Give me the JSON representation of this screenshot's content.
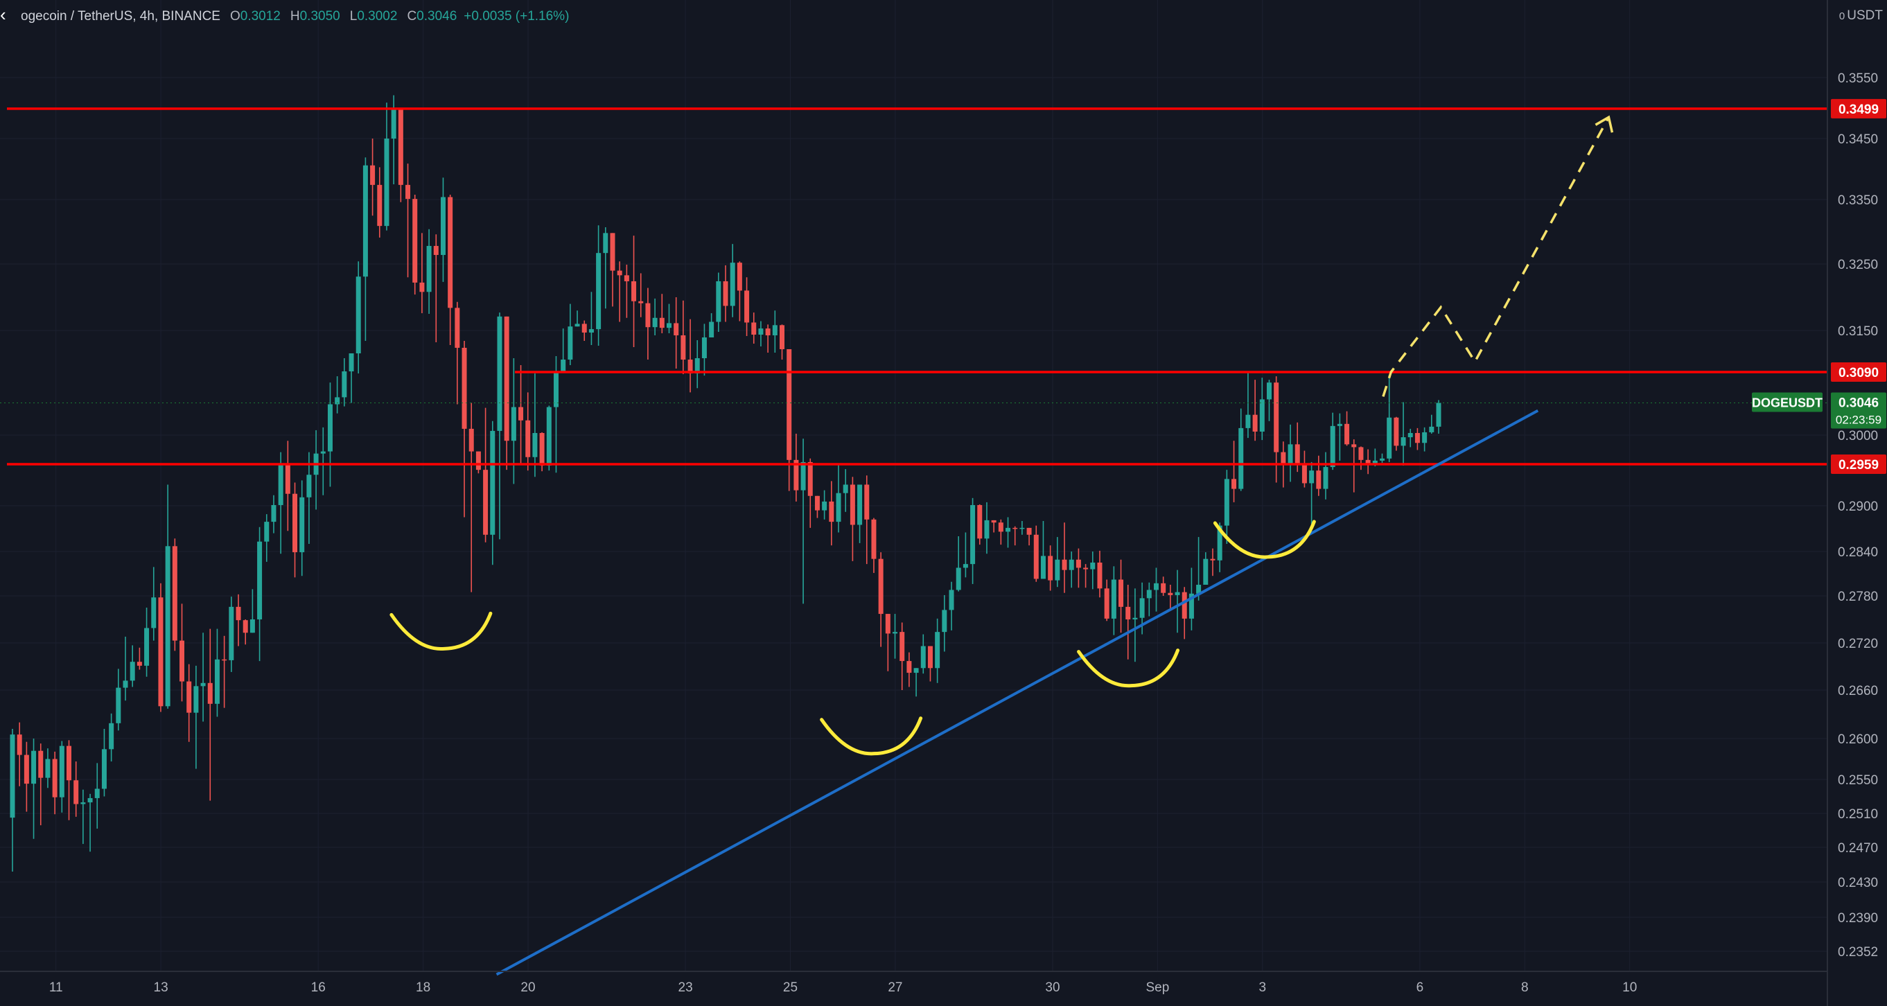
{
  "header": {
    "symbol_text": "ogecoin / TetherUS, 4h, BINANCE",
    "open_label": "O",
    "open_value": "0.3012",
    "high_label": "H",
    "high_value": "0.3050",
    "low_label": "L",
    "low_value": "0.3002",
    "close_label": "C",
    "close_value": "0.3046",
    "change_text": "+0.0035 (+1.16%)"
  },
  "axis": {
    "unit": "USDT"
  },
  "colors": {
    "background": "#131722",
    "up": "#26a69a",
    "down": "#ef5350",
    "level_line": "#ff0000",
    "trendline": "#1e6ec8",
    "annotation": "#ffeb3b",
    "ticker_tag": "#1b7b34"
  },
  "chart_data": {
    "type": "candlestick",
    "symbol": "DOGEUSDT",
    "interval": "4h",
    "exchange": "BINANCE",
    "x_tick_labels": [
      "11",
      "13",
      "16",
      "18",
      "20",
      "23",
      "25",
      "27",
      "30",
      "Sep",
      "3",
      "6",
      "8",
      "10"
    ],
    "y_tick_labels": [
      "0.3550",
      "0.3450",
      "0.3350",
      "0.3250",
      "0.3150",
      "0.3000",
      "0.2900",
      "0.2840",
      "0.2780",
      "0.2720",
      "0.2660",
      "0.2600",
      "0.2550",
      "0.2510",
      "0.2470",
      "0.2430",
      "0.2390",
      "0.2352"
    ],
    "ylim": [
      0.234,
      0.361
    ],
    "horizontal_levels": [
      {
        "label": "0.3499",
        "value": 0.3499
      },
      {
        "label": "0.3090",
        "value": 0.309,
        "starts_at": "Aug 20"
      },
      {
        "label": "0.2959",
        "value": 0.2959
      }
    ],
    "last_price": {
      "ticker": "DOGEUSDT",
      "price": "0.3046",
      "countdown": "02:23:59"
    },
    "trendline": {
      "from": [
        "Aug 19",
        0.2326
      ],
      "to": [
        "Sep 8",
        0.3035
      ]
    },
    "projection_path": [
      [
        "Sep 5",
        0.3055
      ],
      [
        "Sep 5",
        0.309
      ],
      [
        "Sep 6",
        0.3185
      ],
      [
        "Sep 7",
        0.3105
      ],
      [
        "Sep 9",
        0.3485
      ]
    ],
    "pattern_marks": [
      "Aug 18",
      "Aug 26",
      "Aug 31",
      "Sep 3"
    ],
    "candles": [
      [
        0.2505,
        0.2605,
        0.2612,
        0.2442
      ],
      [
        0.2605,
        0.258,
        0.262,
        0.2542
      ],
      [
        0.258,
        0.2545,
        0.2596,
        0.2512
      ],
      [
        0.2545,
        0.2585,
        0.26,
        0.248
      ],
      [
        0.2585,
        0.2552,
        0.2594,
        0.2496
      ],
      [
        0.2552,
        0.2575,
        0.2588,
        0.254
      ],
      [
        0.2575,
        0.2529,
        0.2584,
        0.2509
      ],
      [
        0.2529,
        0.2591,
        0.2597,
        0.2511
      ],
      [
        0.2591,
        0.2549,
        0.2598,
        0.2502
      ],
      [
        0.2549,
        0.2521,
        0.2572,
        0.2506
      ],
      [
        0.2521,
        0.2523,
        0.2538,
        0.2474
      ],
      [
        0.2523,
        0.2528,
        0.2533,
        0.2465
      ],
      [
        0.2528,
        0.2539,
        0.257,
        0.2492
      ],
      [
        0.2539,
        0.2587,
        0.2612,
        0.253
      ],
      [
        0.2587,
        0.2619,
        0.2631,
        0.2572
      ],
      [
        0.2619,
        0.2663,
        0.2687,
        0.261
      ],
      [
        0.2663,
        0.2672,
        0.2728,
        0.2647
      ],
      [
        0.2672,
        0.2696,
        0.2717,
        0.2664
      ],
      [
        0.2696,
        0.2691,
        0.2714,
        0.2686
      ],
      [
        0.2691,
        0.2739,
        0.2765,
        0.2677
      ],
      [
        0.2739,
        0.2778,
        0.2819,
        0.2723
      ],
      [
        0.2778,
        0.264,
        0.2797,
        0.2633
      ],
      [
        0.264,
        0.2847,
        0.293,
        0.2637
      ],
      [
        0.2847,
        0.2723,
        0.2857,
        0.271
      ],
      [
        0.2723,
        0.2671,
        0.277,
        0.2646
      ],
      [
        0.2671,
        0.2632,
        0.2693,
        0.2596
      ],
      [
        0.2632,
        0.2665,
        0.2691,
        0.2563
      ],
      [
        0.2665,
        0.2669,
        0.2733,
        0.2621
      ],
      [
        0.2669,
        0.2643,
        0.2738,
        0.2525
      ],
      [
        0.2643,
        0.2699,
        0.2738,
        0.2627
      ],
      [
        0.2699,
        0.2698,
        0.2729,
        0.2638
      ],
      [
        0.2698,
        0.2766,
        0.2779,
        0.2683
      ],
      [
        0.2766,
        0.2749,
        0.2782,
        0.2716
      ],
      [
        0.2749,
        0.2733,
        0.275,
        0.2718
      ],
      [
        0.2733,
        0.275,
        0.2789,
        0.2736
      ],
      [
        0.275,
        0.2853,
        0.2872,
        0.2697
      ],
      [
        0.2853,
        0.2879,
        0.2889,
        0.2826
      ],
      [
        0.2879,
        0.2901,
        0.2915,
        0.2864
      ],
      [
        0.2901,
        0.296,
        0.2976,
        0.2837
      ],
      [
        0.296,
        0.2917,
        0.2992,
        0.2867
      ],
      [
        0.2917,
        0.2839,
        0.2933,
        0.2805
      ],
      [
        0.2839,
        0.2912,
        0.2936,
        0.2807
      ],
      [
        0.2912,
        0.2944,
        0.2976,
        0.285
      ],
      [
        0.2944,
        0.2974,
        0.3007,
        0.2895
      ],
      [
        0.2974,
        0.2977,
        0.3011,
        0.2915
      ],
      [
        0.2977,
        0.3044,
        0.3075,
        0.2927
      ],
      [
        0.3044,
        0.3054,
        0.3084,
        0.3031
      ],
      [
        0.3054,
        0.3091,
        0.311,
        0.3041
      ],
      [
        0.3091,
        0.3117,
        0.3117,
        0.3046
      ],
      [
        0.3117,
        0.3231,
        0.3254,
        0.3088
      ],
      [
        0.3231,
        0.3406,
        0.3419,
        0.3135
      ],
      [
        0.3406,
        0.3374,
        0.345,
        0.3325
      ],
      [
        0.3374,
        0.3309,
        0.3403,
        0.3291
      ],
      [
        0.3309,
        0.345,
        0.3509,
        0.3302
      ],
      [
        0.345,
        0.3499,
        0.3521,
        0.3375
      ],
      [
        0.3499,
        0.3374,
        0.349,
        0.3346
      ],
      [
        0.3374,
        0.3351,
        0.3409,
        0.323
      ],
      [
        0.3351,
        0.3222,
        0.3358,
        0.3204
      ],
      [
        0.3222,
        0.3208,
        0.3298,
        0.3176
      ],
      [
        0.3208,
        0.3278,
        0.3304,
        0.3175
      ],
      [
        0.3278,
        0.3264,
        0.3296,
        0.3133
      ],
      [
        0.3264,
        0.3354,
        0.3386,
        0.3223
      ],
      [
        0.3354,
        0.3184,
        0.3358,
        0.3129
      ],
      [
        0.3184,
        0.3125,
        0.3193,
        0.3044
      ],
      [
        0.3125,
        0.3009,
        0.3135,
        0.2885
      ],
      [
        0.3009,
        0.2977,
        0.3046,
        0.2785
      ],
      [
        0.2977,
        0.2951,
        0.2971,
        0.2946
      ],
      [
        0.2951,
        0.2862,
        0.3039,
        0.2852
      ],
      [
        0.2862,
        0.3006,
        0.302,
        0.2822
      ],
      [
        0.3006,
        0.3171,
        0.3177,
        0.2856
      ],
      [
        0.3171,
        0.2992,
        0.3171,
        0.2951
      ],
      [
        0.2992,
        0.304,
        0.311,
        0.2931
      ],
      [
        0.304,
        0.3021,
        0.31,
        0.2958
      ],
      [
        0.3021,
        0.2969,
        0.3061,
        0.295
      ],
      [
        0.2969,
        0.3003,
        0.3088,
        0.2941
      ],
      [
        0.3003,
        0.2957,
        0.3004,
        0.2949
      ],
      [
        0.2957,
        0.304,
        0.3042,
        0.295
      ],
      [
        0.304,
        0.3091,
        0.3113,
        0.2947
      ],
      [
        0.3091,
        0.3108,
        0.3153,
        0.309
      ],
      [
        0.3108,
        0.3156,
        0.319,
        0.31
      ],
      [
        0.3156,
        0.316,
        0.318,
        0.3157
      ],
      [
        0.316,
        0.3147,
        0.3165,
        0.3135
      ],
      [
        0.3147,
        0.3152,
        0.3208,
        0.3129
      ],
      [
        0.3152,
        0.3267,
        0.331,
        0.3128
      ],
      [
        0.3267,
        0.3298,
        0.3307,
        0.3183
      ],
      [
        0.3298,
        0.324,
        0.3264,
        0.3186
      ],
      [
        0.324,
        0.3233,
        0.3254,
        0.3163
      ],
      [
        0.3233,
        0.3224,
        0.3249,
        0.3169
      ],
      [
        0.3224,
        0.3194,
        0.3294,
        0.3126
      ],
      [
        0.3194,
        0.3191,
        0.3236,
        0.317
      ],
      [
        0.3191,
        0.3155,
        0.3214,
        0.3108
      ],
      [
        0.3155,
        0.3169,
        0.3198,
        0.3143
      ],
      [
        0.3169,
        0.3154,
        0.3205,
        0.3146
      ],
      [
        0.3154,
        0.3161,
        0.319,
        0.3146
      ],
      [
        0.3161,
        0.3143,
        0.32,
        0.3095
      ],
      [
        0.3143,
        0.3108,
        0.3195,
        0.3087
      ],
      [
        0.3108,
        0.3088,
        0.3167,
        0.3061
      ],
      [
        0.3088,
        0.311,
        0.3136,
        0.3067
      ],
      [
        0.311,
        0.314,
        0.316,
        0.3085
      ],
      [
        0.314,
        0.3163,
        0.3176,
        0.3157
      ],
      [
        0.3163,
        0.3224,
        0.3237,
        0.3148
      ],
      [
        0.3224,
        0.3187,
        0.3248,
        0.3163
      ],
      [
        0.3187,
        0.3252,
        0.3281,
        0.317
      ],
      [
        0.3252,
        0.321,
        0.3254,
        0.3164
      ],
      [
        0.321,
        0.3162,
        0.323,
        0.3142
      ],
      [
        0.3162,
        0.3144,
        0.3177,
        0.3131
      ],
      [
        0.3144,
        0.3153,
        0.3164,
        0.3127
      ],
      [
        0.3153,
        0.3143,
        0.3159,
        0.3118
      ],
      [
        0.3143,
        0.3158,
        0.318,
        0.3118
      ],
      [
        0.3158,
        0.3123,
        0.3159,
        0.3108
      ],
      [
        0.3123,
        0.2965,
        0.3123,
        0.2921
      ],
      [
        0.2965,
        0.2922,
        0.3002,
        0.2906
      ],
      [
        0.2922,
        0.2962,
        0.2995,
        0.277
      ],
      [
        0.2962,
        0.2914,
        0.2967,
        0.2871
      ],
      [
        0.2914,
        0.2894,
        0.2911,
        0.2884
      ],
      [
        0.2894,
        0.2906,
        0.2922,
        0.2882
      ],
      [
        0.2906,
        0.2879,
        0.2935,
        0.2848
      ],
      [
        0.2879,
        0.2918,
        0.296,
        0.2865
      ],
      [
        0.2918,
        0.293,
        0.2952,
        0.2892
      ],
      [
        0.293,
        0.2875,
        0.2941,
        0.2827
      ],
      [
        0.2875,
        0.293,
        0.293,
        0.2851
      ],
      [
        0.293,
        0.2882,
        0.2943,
        0.2823
      ],
      [
        0.2882,
        0.283,
        0.2884,
        0.2811
      ],
      [
        0.283,
        0.2757,
        0.2839,
        0.2715
      ],
      [
        0.2757,
        0.2732,
        0.2747,
        0.2684
      ],
      [
        0.2732,
        0.2734,
        0.2757,
        0.27
      ],
      [
        0.2734,
        0.2697,
        0.2746,
        0.266
      ],
      [
        0.2697,
        0.2682,
        0.2708,
        0.2664
      ],
      [
        0.2682,
        0.2688,
        0.2686,
        0.2652
      ],
      [
        0.2688,
        0.2716,
        0.2731,
        0.2681
      ],
      [
        0.2716,
        0.2688,
        0.2709,
        0.2671
      ],
      [
        0.2688,
        0.2734,
        0.2751,
        0.2669
      ],
      [
        0.2734,
        0.2762,
        0.2781,
        0.2709
      ],
      [
        0.2762,
        0.2788,
        0.2799,
        0.2736
      ],
      [
        0.2788,
        0.2818,
        0.286,
        0.2786
      ],
      [
        0.2818,
        0.2823,
        0.2865,
        0.2805
      ],
      [
        0.2823,
        0.2901,
        0.2911,
        0.2796
      ],
      [
        0.2901,
        0.2857,
        0.2902,
        0.2849
      ],
      [
        0.2857,
        0.2881,
        0.2905,
        0.2837
      ],
      [
        0.2881,
        0.2878,
        0.2879,
        0.2865
      ],
      [
        0.2878,
        0.2866,
        0.2882,
        0.2849
      ],
      [
        0.2866,
        0.2871,
        0.2885,
        0.2845
      ],
      [
        0.2871,
        0.287,
        0.2873,
        0.2848
      ],
      [
        0.287,
        0.2871,
        0.288,
        0.2862
      ],
      [
        0.2871,
        0.2862,
        0.2869,
        0.2848
      ],
      [
        0.2862,
        0.2803,
        0.2874,
        0.2799
      ],
      [
        0.2803,
        0.2834,
        0.288,
        0.2823
      ],
      [
        0.2834,
        0.2801,
        0.2848,
        0.2787
      ],
      [
        0.2801,
        0.2829,
        0.2859,
        0.2792
      ],
      [
        0.2829,
        0.2815,
        0.2878,
        0.2784
      ],
      [
        0.2815,
        0.2829,
        0.284,
        0.2791
      ],
      [
        0.2829,
        0.2818,
        0.2844,
        0.2791
      ],
      [
        0.2818,
        0.2816,
        0.2823,
        0.2791
      ],
      [
        0.2816,
        0.2825,
        0.284,
        0.2789
      ],
      [
        0.2825,
        0.279,
        0.2841,
        0.2778
      ],
      [
        0.279,
        0.2751,
        0.2802,
        0.2748
      ],
      [
        0.2751,
        0.2802,
        0.282,
        0.273
      ],
      [
        0.2802,
        0.2766,
        0.2829,
        0.2733
      ],
      [
        0.2766,
        0.275,
        0.2795,
        0.2699
      ],
      [
        0.275,
        0.2752,
        0.279,
        0.2696
      ],
      [
        0.2752,
        0.2777,
        0.2798,
        0.2731
      ],
      [
        0.2777,
        0.2788,
        0.2798,
        0.2754
      ],
      [
        0.2788,
        0.2797,
        0.2818,
        0.276
      ],
      [
        0.2797,
        0.2784,
        0.2806,
        0.278
      ],
      [
        0.2784,
        0.2781,
        0.2795,
        0.2764
      ],
      [
        0.2781,
        0.2785,
        0.2815,
        0.2733
      ],
      [
        0.2785,
        0.2751,
        0.2792,
        0.2725
      ],
      [
        0.2751,
        0.2783,
        0.2818,
        0.2736
      ],
      [
        0.2783,
        0.2795,
        0.2859,
        0.2774
      ],
      [
        0.2795,
        0.283,
        0.2839,
        0.2815
      ],
      [
        0.283,
        0.2828,
        0.2844,
        0.2807
      ],
      [
        0.2828,
        0.2874,
        0.2878,
        0.2812
      ],
      [
        0.2874,
        0.2938,
        0.2951,
        0.285
      ],
      [
        0.2938,
        0.2924,
        0.2992,
        0.2905
      ],
      [
        0.2924,
        0.301,
        0.3038,
        0.2921
      ],
      [
        0.301,
        0.3029,
        0.3089,
        0.2996
      ],
      [
        0.3029,
        0.3005,
        0.3079,
        0.2992
      ],
      [
        0.3005,
        0.3051,
        0.3082,
        0.2993
      ],
      [
        0.3051,
        0.3075,
        0.3079,
        0.302
      ],
      [
        0.3075,
        0.2976,
        0.3084,
        0.2933
      ],
      [
        0.2976,
        0.2959,
        0.2991,
        0.2926
      ],
      [
        0.2959,
        0.2987,
        0.3015,
        0.2934
      ],
      [
        0.2987,
        0.296,
        0.3018,
        0.2948
      ],
      [
        0.296,
        0.2932,
        0.2978,
        0.2926
      ],
      [
        0.2932,
        0.295,
        0.2962,
        0.2869
      ],
      [
        0.295,
        0.2924,
        0.2971,
        0.2914
      ],
      [
        0.2924,
        0.2955,
        0.2976,
        0.2909
      ],
      [
        0.2955,
        0.3013,
        0.3032,
        0.2951
      ],
      [
        0.3013,
        0.3016,
        0.3031,
        0.2964
      ],
      [
        0.3016,
        0.2987,
        0.3034,
        0.2985
      ],
      [
        0.2987,
        0.2983,
        0.2994,
        0.2919
      ],
      [
        0.2983,
        0.2965,
        0.2984,
        0.2951
      ],
      [
        0.2965,
        0.296,
        0.298,
        0.2945
      ],
      [
        0.296,
        0.2964,
        0.2981,
        0.2956
      ],
      [
        0.2964,
        0.2967,
        0.2974,
        0.2961
      ],
      [
        0.2967,
        0.3025,
        0.3086,
        0.2962
      ],
      [
        0.3025,
        0.2985,
        0.3026,
        0.2978
      ],
      [
        0.2985,
        0.2997,
        0.3047,
        0.2957
      ],
      [
        0.2997,
        0.3003,
        0.3009,
        0.2983
      ],
      [
        0.3003,
        0.2989,
        0.301,
        0.2979
      ],
      [
        0.2989,
        0.3004,
        0.3011,
        0.2977
      ],
      [
        0.3004,
        0.3012,
        0.3029,
        0.3002
      ],
      [
        0.3012,
        0.3046,
        0.305,
        0.3002
      ]
    ]
  }
}
